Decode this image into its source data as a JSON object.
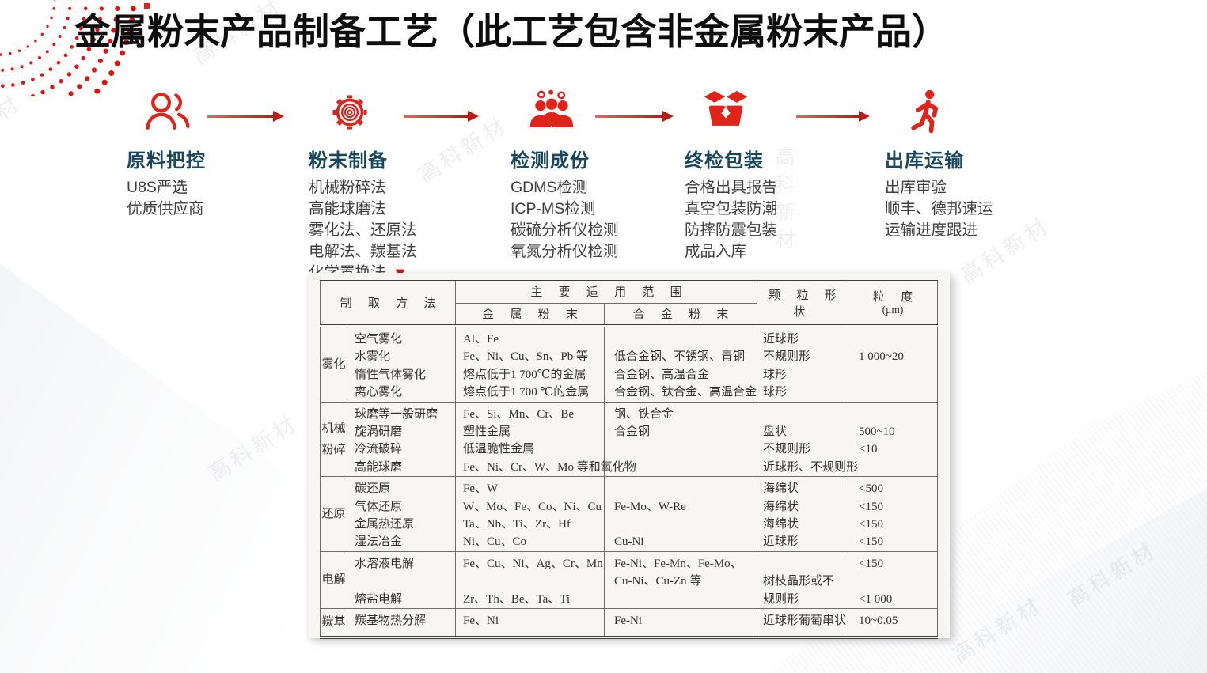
{
  "title": "金属粉末产品制备工艺（此工艺包含非金属粉末产品）",
  "watermark": {
    "text": "高科新材"
  },
  "colors": {
    "accent_red": "#e2231a",
    "arrow_red": "#c1170d",
    "step_title_blue": "#17465f"
  },
  "process": {
    "steps": [
      {
        "title": "原料把控",
        "icon": "users-outline-icon",
        "lines": [
          "U8S严选",
          "优质供应商"
        ]
      },
      {
        "title": "粉末制备",
        "icon": "gear-icon",
        "lines": [
          "机械粉碎法",
          "高能球磨法",
          "雾化法、还原法",
          "电解法、羰基法",
          "化学置换法"
        ],
        "marker": "▼"
      },
      {
        "title": "检测成份",
        "icon": "people-group-icon",
        "lines": [
          "GDMS检测",
          "ICP-MS检测",
          "碳硫分析仪检测",
          "氧氮分析仪检测"
        ]
      },
      {
        "title": "终检包装",
        "icon": "open-box-icon",
        "lines": [
          "合格出具报告",
          "真空包装防潮",
          "防摔防震包装",
          "成品入库"
        ]
      },
      {
        "title": "出库运输",
        "icon": "walking-person-icon",
        "lines": [
          "出库审验",
          "顺丰、德邦速运",
          "运输进度跟进"
        ]
      }
    ]
  },
  "table": {
    "header": {
      "method": "制 取 方 法",
      "scope": "主 要 适 用 范 围",
      "metal": "金 属 粉 末",
      "alloy": "合 金 粉 末",
      "shape": "颗 粒 形 状",
      "size_line1": "粒 度",
      "size_line2": "(μm)"
    },
    "groups": [
      {
        "label": [
          "雾化"
        ],
        "methods": [
          "空气雾化",
          "水雾化",
          "惰性气体雾化",
          "离心雾化"
        ],
        "metal": [
          "Al、Fe",
          "Fe、Ni、Cu、Sn、Pb 等",
          "熔点低于1 700℃的金属",
          "熔点低于1 700 ℃的金属"
        ],
        "alloy": [
          "",
          "低合金钢、不锈钢、青铜",
          "合金钢、高温合金",
          "合金钢、钛合金、高温合金"
        ],
        "shape": [
          "近球形",
          "不规则形",
          "球形",
          "球形"
        ],
        "size": [
          "",
          "1 000~20",
          "",
          ""
        ]
      },
      {
        "label": [
          "机械",
          "粉碎"
        ],
        "methods": [
          "球磨等一般研磨",
          "旋涡研磨",
          "冷流破碎",
          "高能球磨"
        ],
        "metal": [
          "Fe、Si、Mn、Cr、Be",
          "塑性金属",
          "低温脆性金属",
          "Fe、Ni、Cr、W、Mo 等和氧化物"
        ],
        "alloy": [
          "钢、铁合金",
          "合金钢",
          "",
          ""
        ],
        "shape": [
          "",
          "盘状",
          "不规则形",
          "近球形、不规则形"
        ],
        "size": [
          "",
          "500~10",
          "<10",
          ""
        ]
      },
      {
        "label": [
          "还原"
        ],
        "methods": [
          "碳还原",
          "气体还原",
          "金属热还原",
          "湿法冶金"
        ],
        "metal": [
          "Fe、W",
          "W、Mo、Fe、Co、Ni、Cu",
          "Ta、Nb、Ti、Zr、Hf",
          "Ni、Cu、Co"
        ],
        "alloy": [
          "",
          "Fe-Mo、W-Re",
          "",
          "Cu-Ni"
        ],
        "shape": [
          "海绵状",
          "海绵状",
          "海绵状",
          "近球形"
        ],
        "size": [
          "<500",
          "<150",
          "<150",
          "<150"
        ]
      },
      {
        "label": [
          "电解"
        ],
        "methods": [
          "水溶液电解",
          "",
          "熔盐电解"
        ],
        "metal": [
          "Fe、Cu、Ni、Ag、Cr、Mn",
          "",
          "Zr、Th、Be、Ta、Ti"
        ],
        "alloy": [
          "Fe-Ni、Fe-Mn、Fe-Mo、",
          "Cu-Ni、Cu-Zn 等",
          ""
        ],
        "shape": [
          "",
          "树枝晶形或不",
          "规则形"
        ],
        "size": [
          "<150",
          "",
          "<1 000"
        ]
      },
      {
        "label": [
          "羰基"
        ],
        "methods": [
          "羰基物热分解"
        ],
        "metal": [
          "Fe、Ni"
        ],
        "alloy": [
          "Fe-Ni"
        ],
        "shape": [
          "近球形葡萄串状"
        ],
        "size": [
          "10~0.05"
        ]
      }
    ]
  }
}
